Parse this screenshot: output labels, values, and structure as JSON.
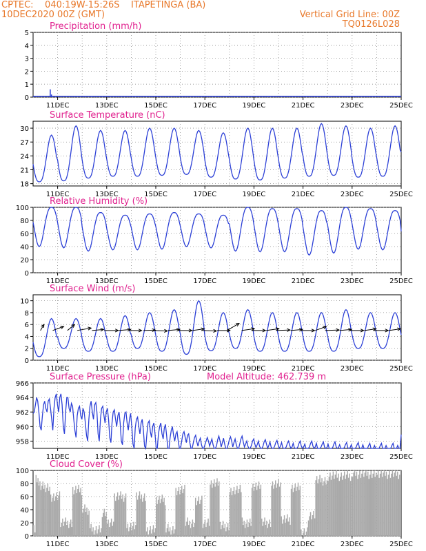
{
  "header": {
    "line1_left": "CPTEC:    040:19W-15:26S    ITAPETINGA (BA)",
    "line2_left": "10DEC2020 00Z (GMT)",
    "line1_right": "Vertical Grid Line: 00Z",
    "line2_right": "TQ0126L028"
  },
  "colors": {
    "header": "#e8782a",
    "title": "#e0208e",
    "line": "#2b3fd6",
    "cloud": "#a9a9a9"
  },
  "chart_data": [
    {
      "type": "line",
      "title": "Precipitation (mm/h)",
      "x_ticks": [
        "11DEC",
        "13DEC",
        "15DEC",
        "17DEC",
        "19DEC",
        "21DEC",
        "23DEC",
        "25DEC"
      ],
      "yticks": [
        0,
        1,
        2,
        3,
        4,
        5
      ],
      "ylim": [
        0,
        5
      ],
      "xlim_days": [
        10,
        25
      ],
      "series": [
        {
          "values_spikes": [
            [
              10.7,
              0.6
            ],
            [
              10.75,
              0.2
            ],
            [
              12.4,
              0.02
            ],
            [
              19.6,
              0.02
            ],
            [
              22.1,
              0.02
            ]
          ]
        }
      ]
    },
    {
      "type": "line",
      "title": "Surface Temperature (nC)",
      "x_ticks": [
        "11DEC",
        "13DEC",
        "15DEC",
        "17DEC",
        "19DEC",
        "21DEC",
        "23DEC",
        "25DEC"
      ],
      "yticks": [
        18,
        21,
        24,
        27,
        30
      ],
      "ylim": [
        17.5,
        31.5
      ],
      "xlim_days": [
        10,
        25
      ],
      "daily_min": [
        18.4,
        18.6,
        19.2,
        19.6,
        19.6,
        19.8,
        20.0,
        19.4,
        19.0,
        18.8,
        19.2,
        19.6,
        19.8,
        19.4,
        19.6
      ],
      "daily_max": [
        28.5,
        30.5,
        29.5,
        29.5,
        30.0,
        30.0,
        29.5,
        29.0,
        30.0,
        30.0,
        30.0,
        31.0,
        30.5,
        30.0,
        30.5
      ],
      "end_value": 24.8
    },
    {
      "type": "line",
      "title": "Relative Humidity (%)",
      "x_ticks": [
        "11DEC",
        "13DEC",
        "15DEC",
        "17DEC",
        "19DEC",
        "21DEC",
        "23DEC",
        "25DEC"
      ],
      "yticks": [
        0,
        20,
        40,
        60,
        80,
        100
      ],
      "ylim": [
        0,
        100
      ],
      "xlim_days": [
        10,
        25
      ],
      "daily_min": [
        40,
        38,
        33,
        35,
        35,
        36,
        40,
        38,
        33,
        32,
        32,
        27,
        30,
        36,
        35
      ],
      "daily_max": [
        100,
        100,
        92,
        88,
        90,
        92,
        90,
        88,
        100,
        98,
        98,
        95,
        100,
        98,
        95
      ],
      "end_value": 63
    },
    {
      "type": "line",
      "title": "Surface Wind (m/s)",
      "x_ticks": [
        "11DEC",
        "13DEC",
        "15DEC",
        "17DEC",
        "19DEC",
        "21DEC",
        "23DEC",
        "25DEC"
      ],
      "yticks": [
        0,
        2,
        4,
        6,
        8,
        10
      ],
      "ylim": [
        0,
        11
      ],
      "xlim_days": [
        10,
        25
      ],
      "daily_min": [
        0.6,
        2.0,
        1.5,
        1.5,
        2.0,
        1.5,
        1.0,
        1.6,
        2.0,
        1.5,
        1.5,
        1.5,
        1.5,
        2.0,
        2.0
      ],
      "daily_max": [
        7.0,
        7.0,
        7.0,
        7.5,
        8.0,
        8.5,
        10.0,
        8.0,
        8.5,
        8.0,
        8.0,
        8.0,
        8.5,
        8.0,
        8.0
      ],
      "arrows": [
        {
          "day": 10.3,
          "speed": 3.0,
          "dir_deg": 210
        },
        {
          "day": 10.8,
          "speed": 5.0,
          "dir_deg": 250
        },
        {
          "day": 11.4,
          "speed": 4.0,
          "dir_deg": 230
        },
        {
          "day": 11.8,
          "speed": 6.0,
          "dir_deg": 260
        },
        {
          "day": 12.4,
          "speed": 5.0,
          "dir_deg": 265
        },
        {
          "day": 12.9,
          "speed": 6.0,
          "dir_deg": 270
        },
        {
          "day": 13.5,
          "speed": 5.0,
          "dir_deg": 265
        },
        {
          "day": 13.9,
          "speed": 5.5,
          "dir_deg": 270
        },
        {
          "day": 14.5,
          "speed": 5.0,
          "dir_deg": 268
        },
        {
          "day": 14.9,
          "speed": 6.0,
          "dir_deg": 272
        },
        {
          "day": 15.5,
          "speed": 5.0,
          "dir_deg": 265
        },
        {
          "day": 15.9,
          "speed": 6.0,
          "dir_deg": 270
        },
        {
          "day": 16.5,
          "speed": 5.0,
          "dir_deg": 262
        },
        {
          "day": 16.9,
          "speed": 6.0,
          "dir_deg": 272
        },
        {
          "day": 17.5,
          "speed": 5.5,
          "dir_deg": 270
        },
        {
          "day": 17.9,
          "speed": 6.0,
          "dir_deg": 240
        },
        {
          "day": 18.5,
          "speed": 5.5,
          "dir_deg": 262
        },
        {
          "day": 18.9,
          "speed": 6.0,
          "dir_deg": 270
        },
        {
          "day": 19.5,
          "speed": 5.5,
          "dir_deg": 262
        },
        {
          "day": 19.9,
          "speed": 6.0,
          "dir_deg": 268
        },
        {
          "day": 20.5,
          "speed": 5.0,
          "dir_deg": 265
        },
        {
          "day": 20.9,
          "speed": 6.0,
          "dir_deg": 270
        },
        {
          "day": 21.5,
          "speed": 5.0,
          "dir_deg": 250
        },
        {
          "day": 21.9,
          "speed": 6.0,
          "dir_deg": 268
        },
        {
          "day": 22.5,
          "speed": 5.0,
          "dir_deg": 265
        },
        {
          "day": 22.9,
          "speed": 6.0,
          "dir_deg": 270
        },
        {
          "day": 23.5,
          "speed": 5.0,
          "dir_deg": 262
        },
        {
          "day": 23.9,
          "speed": 6.0,
          "dir_deg": 270
        },
        {
          "day": 24.5,
          "speed": 5.0,
          "dir_deg": 262
        }
      ]
    },
    {
      "type": "line",
      "title": "Surface Pressure (hPa)",
      "annotation": "Model Altitude: 462.739  m",
      "x_ticks": [
        "11DEC",
        "13DEC",
        "15DEC",
        "17DEC",
        "19DEC",
        "21DEC",
        "23DEC",
        "25DEC"
      ],
      "yticks": [
        958,
        960,
        962,
        964,
        966
      ],
      "ylim": [
        957,
        966
      ],
      "xlim_days": [
        10,
        25
      ],
      "values": [
        961.8,
        962.0,
        963.0,
        964.0,
        963.5,
        962.0,
        960.0,
        959.5,
        961.5,
        963.0,
        963.5,
        962.5,
        962.0,
        963.5,
        963.8,
        962.5,
        961.0,
        959.5,
        962.5,
        964.0,
        964.5,
        963.0,
        962.0,
        964.0,
        964.5,
        963.0,
        960.0,
        959.0,
        962.0,
        964.0,
        964.0,
        962.5,
        962.0,
        963.2,
        962.8,
        961.0,
        959.5,
        958.5,
        961.5,
        962.5,
        962.8,
        961.5,
        961.0,
        962.5,
        962.0,
        960.5,
        958.8,
        958.0,
        961.0,
        962.8,
        963.5,
        962.0,
        961.0,
        963.0,
        963.3,
        962.0,
        959.0,
        958.0,
        961.0,
        962.5,
        962.8,
        961.5,
        960.5,
        962.0,
        962.5,
        961.0,
        958.5,
        957.8,
        960.5,
        962.0,
        962.3,
        961.0,
        960.0,
        961.5,
        962.0,
        960.5,
        958.0,
        957.5,
        960.5,
        961.8,
        962.0,
        960.5,
        959.5,
        961.0,
        961.8,
        960.0,
        957.6,
        957.0,
        959.8,
        961.0,
        961.3,
        960.0,
        959.0,
        960.5,
        961.0,
        959.5,
        957.3,
        957.0,
        959.0,
        960.5,
        960.8,
        959.3,
        958.5,
        960.0,
        960.5,
        959.0,
        957.0,
        957.0,
        959.0,
        960.0,
        960.5,
        959.0,
        958.3,
        959.8,
        960.3,
        958.8,
        957.0,
        957.0,
        958.5,
        959.5,
        960.0,
        958.8,
        958.0,
        959.0,
        959.3,
        958.0,
        957.0,
        957.0,
        958.0,
        959.0,
        959.3,
        958.5,
        957.8,
        958.8,
        959.0,
        957.8,
        957.0,
        957.0,
        957.8,
        958.5,
        958.8,
        957.9,
        957.3,
        958.0,
        958.4,
        957.5,
        957.0,
        957.0,
        957.5,
        958.0,
        958.5,
        958.0,
        957.3,
        957.8,
        958.3,
        957.5,
        957.0,
        957.0,
        957.4,
        958.2,
        958.7,
        958.0,
        957.2,
        957.8,
        958.4,
        957.6,
        957.0,
        957.0,
        957.5,
        958.2,
        958.6,
        958.0,
        957.2,
        957.8,
        958.3,
        957.5,
        957.0,
        957.0,
        957.6,
        958.3,
        958.7,
        957.9,
        957.2,
        957.6,
        958.0,
        957.3,
        957.0,
        957.0,
        957.4,
        958.0,
        958.3,
        957.6,
        957.1,
        957.5,
        958.0,
        957.3,
        957.0,
        957.0,
        957.3,
        957.9,
        958.2,
        957.6,
        957.0,
        957.4,
        957.9,
        957.2,
        957.0,
        957.0,
        957.3,
        957.8,
        958.1,
        957.5,
        957.0,
        957.3,
        957.8,
        957.1,
        957.0,
        957.0,
        957.2,
        957.7,
        958.0,
        957.4,
        957.0,
        957.2,
        957.7,
        957.1,
        957.0,
        957.0,
        957.2,
        957.7,
        958.0,
        957.3,
        957.0,
        957.2,
        957.6,
        957.0,
        957.0,
        957.0,
        957.2,
        957.7,
        958.0,
        957.3,
        957.0,
        957.2,
        957.7,
        957.0,
        957.0,
        957.0,
        957.2,
        957.6,
        957.9,
        957.2,
        957.0,
        957.1,
        957.6,
        957.0,
        957.0,
        957.0,
        957.1,
        957.6,
        957.9,
        957.2,
        957.0,
        957.1,
        957.5,
        957.0,
        957.0,
        957.0,
        957.1,
        957.5,
        957.8,
        957.1,
        957.0,
        957.1,
        957.5,
        957.0,
        957.0,
        957.0,
        957.1,
        957.5,
        957.8,
        957.1,
        957.0,
        957.0,
        957.5,
        957.0,
        957.0,
        957.0,
        957.0,
        957.4,
        957.7,
        957.0,
        957.0,
        957.0,
        957.4,
        957.0,
        957.0,
        957.0,
        957.0,
        957.4,
        957.7,
        957.0,
        957.0,
        957.0,
        957.4,
        957.0,
        957.0,
        957.0,
        957.0,
        957.4,
        957.7,
        957.0,
        957.0,
        957.0,
        957.4,
        957.0,
        957.0,
        958.9
      ]
    },
    {
      "type": "bar",
      "title": "Cloud Cover (%)",
      "x_ticks": [
        "11DEC",
        "13DEC",
        "15DEC",
        "17DEC",
        "19DEC",
        "21DEC",
        "23DEC",
        "25DEC"
      ],
      "yticks": [
        0,
        20,
        40,
        60,
        80,
        100
      ],
      "ylim": [
        0,
        100
      ],
      "xlim_days": [
        10,
        25
      ],
      "segments": [
        {
          "from": 10.0,
          "to": 10.1,
          "level": 10
        },
        {
          "from": 10.1,
          "to": 10.3,
          "level": 85
        },
        {
          "from": 10.3,
          "to": 10.7,
          "level": 75
        },
        {
          "from": 10.7,
          "to": 11.1,
          "level": 60
        },
        {
          "from": 11.1,
          "to": 11.6,
          "level": 20
        },
        {
          "from": 11.6,
          "to": 12.0,
          "level": 70
        },
        {
          "from": 12.0,
          "to": 12.3,
          "level": 40
        },
        {
          "from": 12.3,
          "to": 12.8,
          "level": 10
        },
        {
          "from": 12.8,
          "to": 13.0,
          "level": 35
        },
        {
          "from": 13.0,
          "to": 13.3,
          "level": 20
        },
        {
          "from": 13.3,
          "to": 13.8,
          "level": 60
        },
        {
          "from": 13.8,
          "to": 14.2,
          "level": 15
        },
        {
          "from": 14.2,
          "to": 14.6,
          "level": 60
        },
        {
          "from": 14.6,
          "to": 15.0,
          "level": 10
        },
        {
          "from": 15.0,
          "to": 15.4,
          "level": 55
        },
        {
          "from": 15.4,
          "to": 15.8,
          "level": 10
        },
        {
          "from": 15.8,
          "to": 16.2,
          "level": 70
        },
        {
          "from": 16.2,
          "to": 16.6,
          "level": 20
        },
        {
          "from": 16.6,
          "to": 16.9,
          "level": 55
        },
        {
          "from": 16.9,
          "to": 17.2,
          "level": 20
        },
        {
          "from": 17.2,
          "to": 17.6,
          "level": 80
        },
        {
          "from": 17.6,
          "to": 18.0,
          "level": 15
        },
        {
          "from": 18.0,
          "to": 18.5,
          "level": 70
        },
        {
          "from": 18.5,
          "to": 18.9,
          "level": 20
        },
        {
          "from": 18.9,
          "to": 19.3,
          "level": 75
        },
        {
          "from": 19.3,
          "to": 19.7,
          "level": 20
        },
        {
          "from": 19.7,
          "to": 20.1,
          "level": 80
        },
        {
          "from": 20.1,
          "to": 20.5,
          "level": 25
        },
        {
          "from": 20.5,
          "to": 20.9,
          "level": 75
        },
        {
          "from": 20.9,
          "to": 21.2,
          "level": 5
        },
        {
          "from": 21.2,
          "to": 21.5,
          "level": 30
        },
        {
          "from": 21.5,
          "to": 22.0,
          "level": 85
        },
        {
          "from": 22.0,
          "to": 23.0,
          "level": 92
        },
        {
          "from": 23.0,
          "to": 24.0,
          "level": 95
        },
        {
          "from": 24.0,
          "to": 25.0,
          "level": 95
        }
      ]
    }
  ]
}
